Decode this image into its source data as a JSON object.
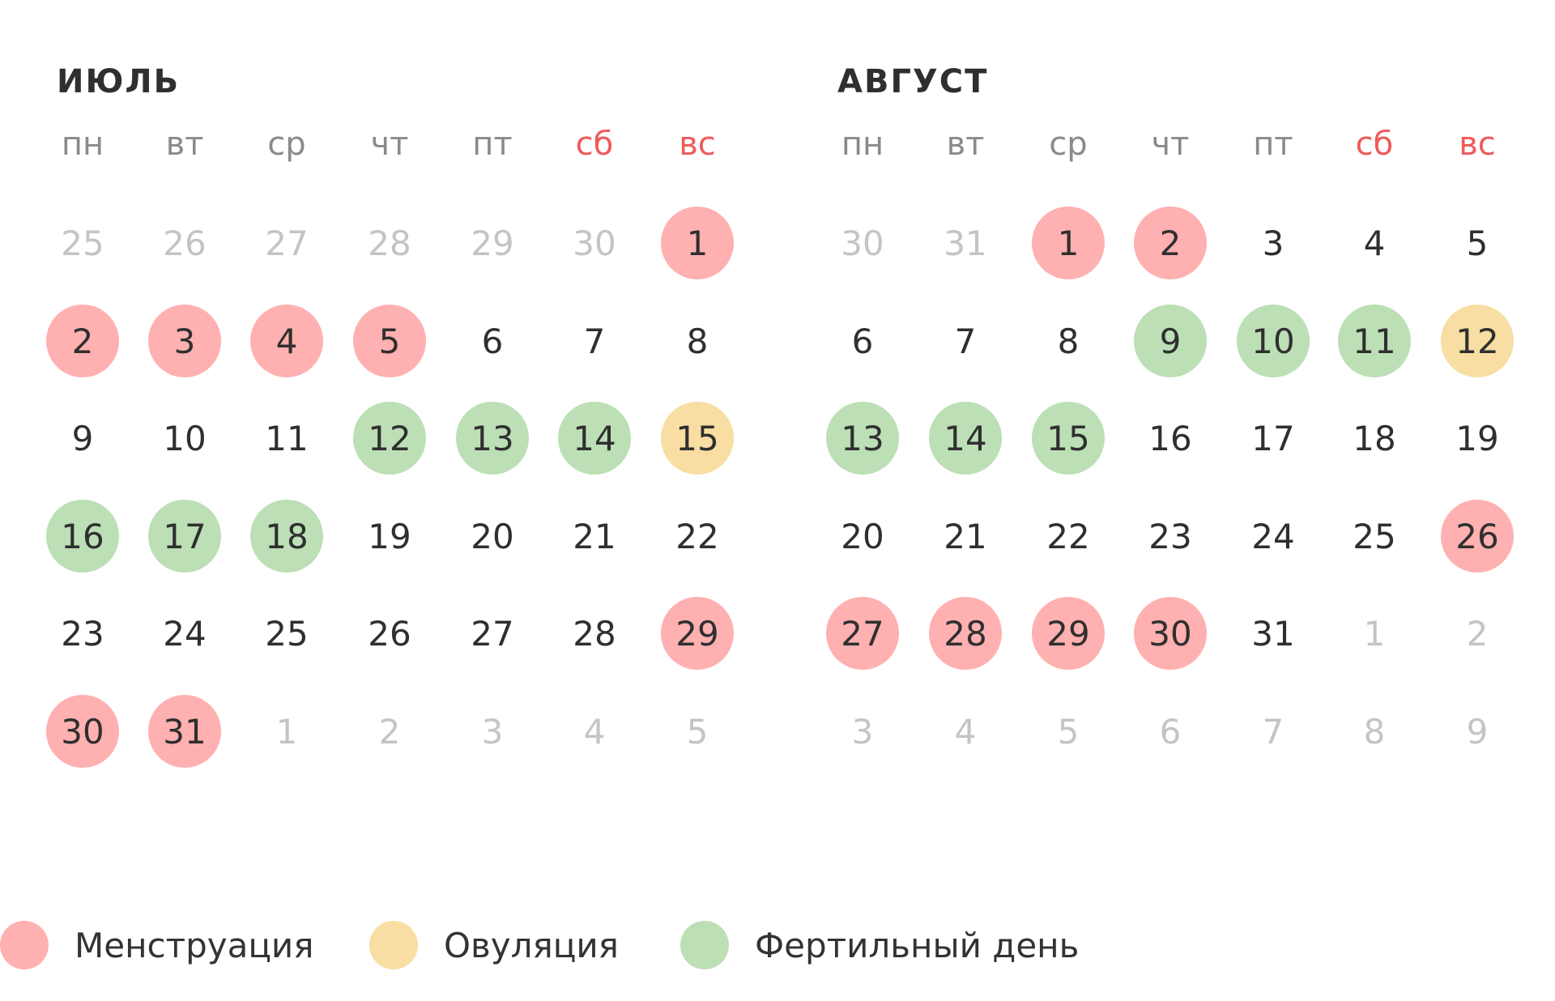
{
  "colors": {
    "menstruation": "#ffb0b0",
    "ovulation": "#f8dea2",
    "fertile": "#bcdfb5",
    "weekend": "#f05a5a",
    "weekday": "#8a8a8a",
    "muted": "#c4c4c4",
    "text": "#2f2f2f"
  },
  "months": [
    {
      "title": "ИЮЛЬ",
      "weekdays": [
        "пн",
        "вт",
        "ср",
        "чт",
        "пт",
        "сб",
        "вс"
      ],
      "weeks": [
        [
          {
            "d": "25",
            "t": "muted"
          },
          {
            "d": "26",
            "t": "muted"
          },
          {
            "d": "27",
            "t": "muted"
          },
          {
            "d": "28",
            "t": "muted"
          },
          {
            "d": "29",
            "t": "muted"
          },
          {
            "d": "30",
            "t": "muted"
          },
          {
            "d": "1",
            "t": "menstruation"
          }
        ],
        [
          {
            "d": "2",
            "t": "menstruation"
          },
          {
            "d": "3",
            "t": "menstruation"
          },
          {
            "d": "4",
            "t": "menstruation"
          },
          {
            "d": "5",
            "t": "menstruation"
          },
          {
            "d": "6",
            "t": ""
          },
          {
            "d": "7",
            "t": ""
          },
          {
            "d": "8",
            "t": ""
          }
        ],
        [
          {
            "d": "9",
            "t": ""
          },
          {
            "d": "10",
            "t": ""
          },
          {
            "d": "11",
            "t": ""
          },
          {
            "d": "12",
            "t": "fertile"
          },
          {
            "d": "13",
            "t": "fertile"
          },
          {
            "d": "14",
            "t": "fertile"
          },
          {
            "d": "15",
            "t": "ovulation"
          }
        ],
        [
          {
            "d": "16",
            "t": "fertile"
          },
          {
            "d": "17",
            "t": "fertile"
          },
          {
            "d": "18",
            "t": "fertile"
          },
          {
            "d": "19",
            "t": ""
          },
          {
            "d": "20",
            "t": ""
          },
          {
            "d": "21",
            "t": ""
          },
          {
            "d": "22",
            "t": ""
          }
        ],
        [
          {
            "d": "23",
            "t": ""
          },
          {
            "d": "24",
            "t": ""
          },
          {
            "d": "25",
            "t": ""
          },
          {
            "d": "26",
            "t": ""
          },
          {
            "d": "27",
            "t": ""
          },
          {
            "d": "28",
            "t": ""
          },
          {
            "d": "29",
            "t": "menstruation"
          }
        ],
        [
          {
            "d": "30",
            "t": "menstruation"
          },
          {
            "d": "31",
            "t": "menstruation"
          },
          {
            "d": "1",
            "t": "muted"
          },
          {
            "d": "2",
            "t": "muted"
          },
          {
            "d": "3",
            "t": "muted"
          },
          {
            "d": "4",
            "t": "muted"
          },
          {
            "d": "5",
            "t": "muted"
          }
        ]
      ]
    },
    {
      "title": "АВГУСТ",
      "weekdays": [
        "пн",
        "вт",
        "ср",
        "чт",
        "пт",
        "сб",
        "вс"
      ],
      "weeks": [
        [
          {
            "d": "30",
            "t": "muted"
          },
          {
            "d": "31",
            "t": "muted"
          },
          {
            "d": "1",
            "t": "menstruation"
          },
          {
            "d": "2",
            "t": "menstruation"
          },
          {
            "d": "3",
            "t": ""
          },
          {
            "d": "4",
            "t": ""
          },
          {
            "d": "5",
            "t": ""
          }
        ],
        [
          {
            "d": "6",
            "t": ""
          },
          {
            "d": "7",
            "t": ""
          },
          {
            "d": "8",
            "t": ""
          },
          {
            "d": "9",
            "t": "fertile"
          },
          {
            "d": "10",
            "t": "fertile"
          },
          {
            "d": "11",
            "t": "fertile"
          },
          {
            "d": "12",
            "t": "ovulation"
          }
        ],
        [
          {
            "d": "13",
            "t": "fertile"
          },
          {
            "d": "14",
            "t": "fertile"
          },
          {
            "d": "15",
            "t": "fertile"
          },
          {
            "d": "16",
            "t": ""
          },
          {
            "d": "17",
            "t": ""
          },
          {
            "d": "18",
            "t": ""
          },
          {
            "d": "19",
            "t": ""
          }
        ],
        [
          {
            "d": "20",
            "t": ""
          },
          {
            "d": "21",
            "t": ""
          },
          {
            "d": "22",
            "t": ""
          },
          {
            "d": "23",
            "t": ""
          },
          {
            "d": "24",
            "t": ""
          },
          {
            "d": "25",
            "t": ""
          },
          {
            "d": "26",
            "t": "menstruation"
          }
        ],
        [
          {
            "d": "27",
            "t": "menstruation"
          },
          {
            "d": "28",
            "t": "menstruation"
          },
          {
            "d": "29",
            "t": "menstruation"
          },
          {
            "d": "30",
            "t": "menstruation"
          },
          {
            "d": "31",
            "t": ""
          },
          {
            "d": "1",
            "t": "muted"
          },
          {
            "d": "2",
            "t": "muted"
          }
        ],
        [
          {
            "d": "3",
            "t": "muted"
          },
          {
            "d": "4",
            "t": "muted"
          },
          {
            "d": "5",
            "t": "muted"
          },
          {
            "d": "6",
            "t": "muted"
          },
          {
            "d": "7",
            "t": "muted"
          },
          {
            "d": "8",
            "t": "muted"
          },
          {
            "d": "9",
            "t": "muted"
          }
        ]
      ]
    }
  ],
  "legend": [
    {
      "key": "menstruation",
      "label": "Менструация"
    },
    {
      "key": "ovulation",
      "label": "Овуляция"
    },
    {
      "key": "fertile",
      "label": "Фертильный день"
    }
  ]
}
